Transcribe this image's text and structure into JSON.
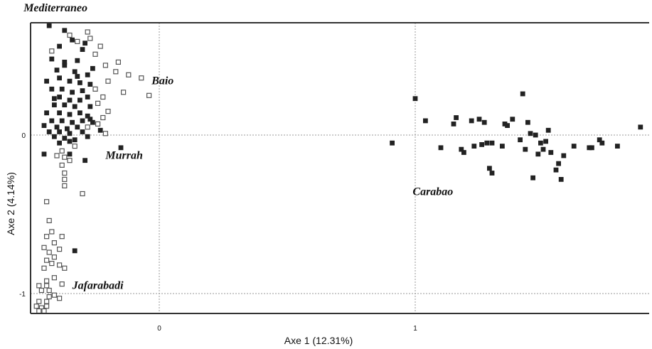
{
  "chart_data": {
    "type": "scatter",
    "title": "",
    "xlabel": "Axe 1  (12.31%)",
    "ylabel": "Axe 2  (4.14%)",
    "xlim": [
      -0.5,
      0.93
    ],
    "ylim": [
      -1.11,
      0.71
    ],
    "x_ticks": [
      {
        "value": 0,
        "label": "0"
      },
      {
        "value": 1,
        "label": "1"
      }
    ],
    "y_ticks": [
      {
        "value": 0,
        "label": "0"
      },
      {
        "value": -1,
        "label": "-1"
      }
    ],
    "reference_lines": {
      "x": [
        0,
        1
      ],
      "y": [
        0,
        -1
      ],
      "style": "dotted"
    },
    "group_labels": [
      {
        "text": "Mediterraneo",
        "x": -0.53,
        "y": 0.78
      },
      {
        "text": "Baio",
        "x": -0.03,
        "y": 0.32
      },
      {
        "text": "Murrah",
        "x": -0.21,
        "y": -0.15
      },
      {
        "text": "Carabao",
        "x": 0.99,
        "y": -0.38
      },
      {
        "text": "Jafarabadi",
        "x": -0.34,
        "y": -0.97
      }
    ],
    "series": [
      {
        "marker": "filled-square",
        "color": "#222222",
        "points": [
          [
            -0.43,
            0.69
          ],
          [
            -0.37,
            0.66
          ],
          [
            -0.29,
            0.58
          ],
          [
            -0.39,
            0.56
          ],
          [
            -0.3,
            0.54
          ],
          [
            -0.42,
            0.48
          ],
          [
            -0.37,
            0.46
          ],
          [
            -0.32,
            0.47
          ],
          [
            -0.26,
            0.42
          ],
          [
            -0.4,
            0.41
          ],
          [
            -0.33,
            0.4
          ],
          [
            -0.28,
            0.38
          ],
          [
            -0.44,
            0.34
          ],
          [
            -0.39,
            0.36
          ],
          [
            -0.35,
            0.34
          ],
          [
            -0.31,
            0.33
          ],
          [
            -0.27,
            0.32
          ],
          [
            -0.42,
            0.29
          ],
          [
            -0.38,
            0.29
          ],
          [
            -0.34,
            0.27
          ],
          [
            -0.3,
            0.28
          ],
          [
            -0.25,
            0.29
          ],
          [
            -0.39,
            0.24
          ],
          [
            -0.35,
            0.22
          ],
          [
            -0.31,
            0.22
          ],
          [
            -0.28,
            0.24
          ],
          [
            -0.41,
            0.19
          ],
          [
            -0.37,
            0.19
          ],
          [
            -0.33,
            0.18
          ],
          [
            -0.27,
            0.18
          ],
          [
            -0.44,
            0.14
          ],
          [
            -0.39,
            0.14
          ],
          [
            -0.35,
            0.13
          ],
          [
            -0.31,
            0.14
          ],
          [
            -0.28,
            0.12
          ],
          [
            -0.42,
            0.09
          ],
          [
            -0.38,
            0.09
          ],
          [
            -0.34,
            0.08
          ],
          [
            -0.3,
            0.09
          ],
          [
            -0.26,
            0.08
          ],
          [
            -0.45,
            0.06
          ],
          [
            -0.4,
            0.05
          ],
          [
            -0.36,
            0.04
          ],
          [
            -0.32,
            0.05
          ],
          [
            -0.43,
            0.02
          ],
          [
            -0.39,
            0.02
          ],
          [
            -0.35,
            0.01
          ],
          [
            -0.3,
            0.02
          ],
          [
            -0.23,
            0.03
          ],
          [
            -0.41,
            -0.01
          ],
          [
            -0.37,
            -0.02
          ],
          [
            -0.33,
            -0.03
          ],
          [
            -0.28,
            -0.01
          ],
          [
            -0.39,
            -0.05
          ],
          [
            -0.35,
            -0.04
          ],
          [
            -0.45,
            -0.12
          ],
          [
            -0.35,
            -0.12
          ],
          [
            -0.29,
            -0.16
          ],
          [
            -0.15,
            -0.08
          ],
          [
            -0.33,
            -0.73
          ],
          [
            -0.37,
            0.44
          ],
          [
            -0.34,
            0.6
          ],
          [
            -0.41,
            0.23
          ],
          [
            -0.27,
            0.1
          ],
          [
            -0.32,
            0.37
          ]
        ]
      },
      {
        "marker": "open-square",
        "color": "#555555",
        "points": [
          [
            -0.28,
            0.65
          ],
          [
            -0.35,
            0.63
          ],
          [
            -0.27,
            0.61
          ],
          [
            -0.32,
            0.59
          ],
          [
            -0.23,
            0.56
          ],
          [
            -0.42,
            0.53
          ],
          [
            -0.25,
            0.51
          ],
          [
            -0.16,
            0.46
          ],
          [
            -0.21,
            0.44
          ],
          [
            -0.17,
            0.4
          ],
          [
            -0.07,
            0.36
          ],
          [
            -0.12,
            0.38
          ],
          [
            -0.04,
            0.25
          ],
          [
            -0.14,
            0.27
          ],
          [
            -0.2,
            0.34
          ],
          [
            -0.25,
            0.29
          ],
          [
            -0.22,
            0.24
          ],
          [
            -0.24,
            0.2
          ],
          [
            -0.2,
            0.15
          ],
          [
            -0.22,
            0.11
          ],
          [
            -0.24,
            0.07
          ],
          [
            -0.21,
            0.01
          ],
          [
            -0.28,
            0.05
          ],
          [
            -0.33,
            -0.07
          ],
          [
            -0.38,
            -0.1
          ],
          [
            -0.4,
            -0.13
          ],
          [
            -0.37,
            -0.14
          ],
          [
            -0.35,
            -0.16
          ],
          [
            -0.38,
            -0.19
          ],
          [
            -0.37,
            -0.24
          ],
          [
            -0.37,
            -0.28
          ],
          [
            -0.37,
            -0.32
          ],
          [
            -0.3,
            -0.37
          ],
          [
            -0.44,
            -0.42
          ],
          [
            -0.43,
            -0.54
          ],
          [
            -0.42,
            -0.61
          ],
          [
            -0.44,
            -0.64
          ],
          [
            -0.38,
            -0.64
          ],
          [
            -0.41,
            -0.68
          ],
          [
            -0.45,
            -0.71
          ],
          [
            -0.39,
            -0.72
          ],
          [
            -0.43,
            -0.74
          ],
          [
            -0.41,
            -0.77
          ],
          [
            -0.44,
            -0.79
          ],
          [
            -0.42,
            -0.81
          ],
          [
            -0.39,
            -0.82
          ],
          [
            -0.37,
            -0.84
          ],
          [
            -0.45,
            -0.84
          ],
          [
            -0.41,
            -0.9
          ],
          [
            -0.44,
            -0.92
          ],
          [
            -0.47,
            -0.95
          ],
          [
            -0.44,
            -0.95
          ],
          [
            -0.43,
            -0.98
          ],
          [
            -0.46,
            -0.98
          ],
          [
            -0.38,
            -0.94
          ],
          [
            -0.43,
            -1.02
          ],
          [
            -0.47,
            -1.05
          ],
          [
            -0.44,
            -1.05
          ],
          [
            -0.39,
            -1.03
          ],
          [
            -0.48,
            -1.08
          ],
          [
            -0.46,
            -1.09
          ],
          [
            -0.44,
            -1.08
          ],
          [
            -0.45,
            -1.11
          ],
          [
            -0.47,
            -1.11
          ],
          [
            -0.41,
            -1.01
          ]
        ]
      },
      {
        "marker": "filled-square",
        "color": "#222222",
        "points": [
          [
            0.91,
            -0.05
          ],
          [
            1.0,
            0.23
          ],
          [
            1.04,
            0.09
          ],
          [
            1.1,
            -0.08
          ],
          [
            1.15,
            0.07
          ],
          [
            1.16,
            0.11
          ],
          [
            1.18,
            -0.09
          ],
          [
            1.19,
            -0.11
          ],
          [
            1.22,
            0.09
          ],
          [
            1.23,
            -0.07
          ],
          [
            1.26,
            -0.06
          ],
          [
            1.28,
            -0.05
          ],
          [
            1.25,
            0.1
          ],
          [
            1.27,
            0.08
          ],
          [
            1.3,
            -0.05
          ],
          [
            1.29,
            -0.21
          ],
          [
            1.3,
            -0.24
          ],
          [
            1.34,
            -0.07
          ],
          [
            1.35,
            0.07
          ],
          [
            1.36,
            0.06
          ],
          [
            1.38,
            0.1
          ],
          [
            1.41,
            -0.03
          ],
          [
            1.42,
            0.26
          ],
          [
            1.43,
            -0.09
          ],
          [
            1.44,
            0.08
          ],
          [
            1.45,
            0.01
          ],
          [
            1.46,
            -0.27
          ],
          [
            1.47,
            0.0
          ],
          [
            1.49,
            -0.05
          ],
          [
            1.5,
            -0.09
          ],
          [
            1.51,
            -0.04
          ],
          [
            1.52,
            0.03
          ],
          [
            1.53,
            -0.11
          ],
          [
            1.55,
            -0.22
          ],
          [
            1.56,
            -0.18
          ],
          [
            1.57,
            -0.28
          ],
          [
            1.58,
            -0.13
          ],
          [
            1.62,
            -0.07
          ],
          [
            1.68,
            -0.08
          ],
          [
            1.69,
            -0.08
          ],
          [
            1.72,
            -0.03
          ],
          [
            1.73,
            -0.05
          ],
          [
            1.79,
            -0.07
          ],
          [
            1.88,
            0.05
          ],
          [
            1.48,
            -0.12
          ]
        ]
      }
    ]
  }
}
